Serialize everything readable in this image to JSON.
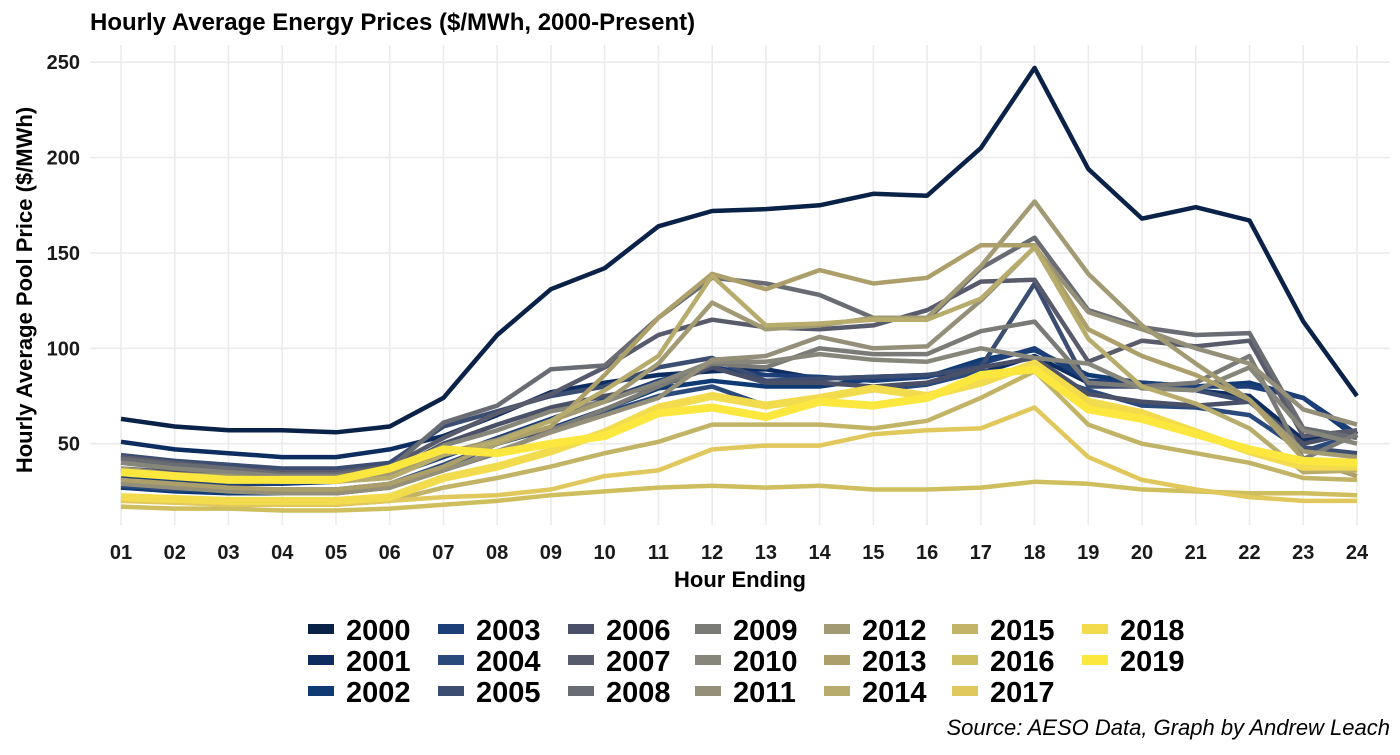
{
  "chart_data": {
    "type": "line",
    "title": "Hourly Average Energy Prices ($/MWh, 2000-Present)",
    "xlabel": "Hour Ending",
    "ylabel": "Hourly Average Pool Price ($/MWh)",
    "caption": "Source: AESO Data, Graph by Andrew Leach",
    "ylim": [
      15,
      255
    ],
    "yticks": [
      50,
      100,
      150,
      200,
      250
    ],
    "categories": [
      "01",
      "02",
      "03",
      "04",
      "05",
      "06",
      "07",
      "08",
      "09",
      "10",
      "11",
      "12",
      "13",
      "14",
      "15",
      "16",
      "17",
      "18",
      "19",
      "20",
      "21",
      "22",
      "23",
      "24"
    ],
    "grid": true,
    "legend_position": "bottom",
    "series": [
      {
        "name": "2000",
        "color": "#0a2148",
        "values": [
          63,
          59,
          57,
          57,
          56,
          59,
          74,
          107,
          131,
          142,
          164,
          172,
          173,
          175,
          181,
          180,
          205,
          247,
          194,
          168,
          174,
          167,
          114,
          75
        ]
      },
      {
        "name": "2001",
        "color": "#0d2c60",
        "values": [
          51,
          47,
          45,
          43,
          43,
          47,
          54,
          65,
          77,
          82,
          86,
          88,
          89,
          84,
          85,
          86,
          87,
          96,
          82,
          80,
          78,
          75,
          52,
          57
        ]
      },
      {
        "name": "2002",
        "color": "#0f3a73",
        "values": [
          27,
          25,
          24,
          24,
          24,
          27,
          37,
          50,
          58,
          68,
          79,
          83,
          80,
          80,
          84,
          85,
          94,
          99,
          86,
          82,
          80,
          82,
          74,
          53
        ]
      },
      {
        "name": "2003",
        "color": "#1c3f79",
        "values": [
          32,
          30,
          29,
          29,
          30,
          33,
          43,
          53,
          63,
          73,
          83,
          90,
          86,
          85,
          83,
          85,
          92,
          100,
          83,
          82,
          80,
          80,
          74,
          55
        ]
      },
      {
        "name": "2004",
        "color": "#2b4a7c",
        "values": [
          28,
          26,
          26,
          26,
          26,
          29,
          39,
          50,
          58,
          66,
          75,
          80,
          70,
          74,
          78,
          81,
          88,
          88,
          78,
          70,
          69,
          65,
          46,
          55
        ]
      },
      {
        "name": "2005",
        "color": "#3c4d72",
        "values": [
          44,
          41,
          39,
          37,
          37,
          40,
          59,
          67,
          75,
          80,
          90,
          95,
          83,
          84,
          85,
          86,
          90,
          134,
          80,
          80,
          78,
          72,
          48,
          45
        ]
      },
      {
        "name": "2006",
        "color": "#4a5068",
        "values": [
          37,
          35,
          34,
          32,
          32,
          35,
          50,
          60,
          69,
          75,
          80,
          90,
          82,
          82,
          80,
          82,
          90,
          95,
          76,
          72,
          70,
          72,
          50,
          56
        ]
      },
      {
        "name": "2007",
        "color": "#585b6c",
        "values": [
          43,
          40,
          37,
          35,
          35,
          38,
          53,
          66,
          76,
          90,
          107,
          115,
          111,
          110,
          112,
          120,
          135,
          136,
          93,
          104,
          101,
          104,
          54,
          57
        ]
      },
      {
        "name": "2008",
        "color": "#6a6c74",
        "values": [
          42,
          39,
          37,
          34,
          34,
          37,
          61,
          70,
          89,
          91,
          116,
          137,
          134,
          128,
          116,
          115,
          142,
          158,
          120,
          111,
          107,
          108,
          58,
          53
        ]
      },
      {
        "name": "2009",
        "color": "#7a7a77",
        "values": [
          30,
          27,
          26,
          25,
          25,
          27,
          36,
          45,
          57,
          68,
          80,
          92,
          90,
          100,
          97,
          97,
          109,
          114,
          82,
          80,
          82,
          96,
          42,
          55
        ]
      },
      {
        "name": "2010",
        "color": "#87867b",
        "values": [
          40,
          37,
          35,
          33,
          33,
          35,
          49,
          57,
          67,
          72,
          82,
          93,
          93,
          97,
          94,
          93,
          100,
          95,
          92,
          79,
          78,
          90,
          57,
          50
        ]
      },
      {
        "name": "2011",
        "color": "#948f78",
        "values": [
          29,
          27,
          25,
          24,
          24,
          27,
          36,
          46,
          56,
          65,
          74,
          94,
          96,
          106,
          100,
          101,
          125,
          153,
          119,
          110,
          100,
          92,
          68,
          60
        ]
      },
      {
        "name": "2012",
        "color": "#a19a73",
        "values": [
          37,
          34,
          33,
          31,
          31,
          34,
          45,
          52,
          62,
          72,
          92,
          124,
          110,
          112,
          116,
          116,
          143,
          177,
          139,
          112,
          92,
          73,
          46,
          43
        ]
      },
      {
        "name": "2013",
        "color": "#ad9f6a",
        "values": [
          31,
          29,
          27,
          26,
          26,
          29,
          38,
          50,
          59,
          86,
          116,
          139,
          131,
          141,
          134,
          137,
          154,
          154,
          110,
          96,
          86,
          73,
          42,
          33
        ]
      },
      {
        "name": "2014",
        "color": "#b8ac6d",
        "values": [
          36,
          33,
          31,
          30,
          30,
          32,
          44,
          51,
          62,
          78,
          96,
          138,
          112,
          113,
          115,
          115,
          126,
          153,
          105,
          80,
          71,
          58,
          35,
          36
        ]
      },
      {
        "name": "2015",
        "color": "#c2b466",
        "values": [
          21,
          20,
          19,
          18,
          18,
          20,
          27,
          32,
          38,
          45,
          51,
          60,
          60,
          60,
          58,
          62,
          74,
          88,
          60,
          50,
          45,
          40,
          32,
          31
        ]
      },
      {
        "name": "2016",
        "color": "#cfbe5e",
        "values": [
          17,
          16,
          16,
          15,
          15,
          16,
          18,
          20,
          23,
          25,
          27,
          28,
          27,
          28,
          26,
          26,
          27,
          30,
          29,
          26,
          25,
          24,
          24,
          23
        ]
      },
      {
        "name": "2017",
        "color": "#e0c85c",
        "values": [
          20,
          19,
          18,
          18,
          18,
          20,
          22,
          23,
          26,
          33,
          36,
          47,
          49,
          49,
          55,
          57,
          58,
          69,
          43,
          31,
          26,
          22,
          20,
          20
        ]
      },
      {
        "name": "2018",
        "color": "#f2dc4e",
        "values": [
          22,
          21,
          20,
          20,
          20,
          22,
          32,
          38,
          46,
          56,
          69,
          75,
          70,
          74,
          79,
          75,
          82,
          92,
          72,
          66,
          56,
          46,
          38,
          38
        ]
      },
      {
        "name": "2019",
        "color": "#fbe73d",
        "values": [
          35,
          33,
          31,
          31,
          31,
          37,
          47,
          45,
          50,
          54,
          66,
          69,
          64,
          72,
          70,
          74,
          86,
          89,
          68,
          63,
          55,
          47,
          41,
          40
        ]
      }
    ]
  }
}
